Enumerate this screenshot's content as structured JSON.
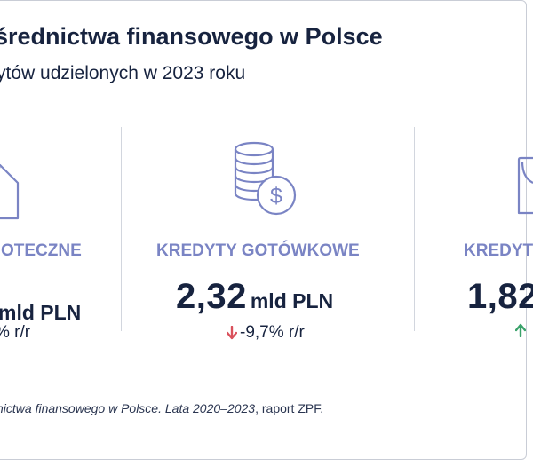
{
  "header": {
    "title": "średnictwa finansowego w Polsce",
    "subtitle": "ytów udzielonych w 2023 roku"
  },
  "columns": [
    {
      "label": "OTECZNE",
      "value_num": "",
      "value_unit": "mld PLN",
      "change": "% r/r",
      "icon": "house-icon"
    },
    {
      "label": "KREDYTY GOTÓWKOWE",
      "value_num": "2,32",
      "value_unit": "mld PLN",
      "change": "-9,7% r/r",
      "trend": "down",
      "icon": "coins-dollar-icon"
    },
    {
      "label": "KREDYT",
      "value_num": "1,82",
      "value_unit": "",
      "change": "",
      "trend": "up",
      "icon": "car-icon"
    }
  ],
  "colors": {
    "accent": "#7a84c4",
    "down": "#d9505b",
    "up": "#3aa26a",
    "text": "#17233f"
  },
  "footer": {
    "source_italic": "nictwa finansowego w Polsce. Lata 2020–2023",
    "source_rest": ", raport ZPF."
  }
}
